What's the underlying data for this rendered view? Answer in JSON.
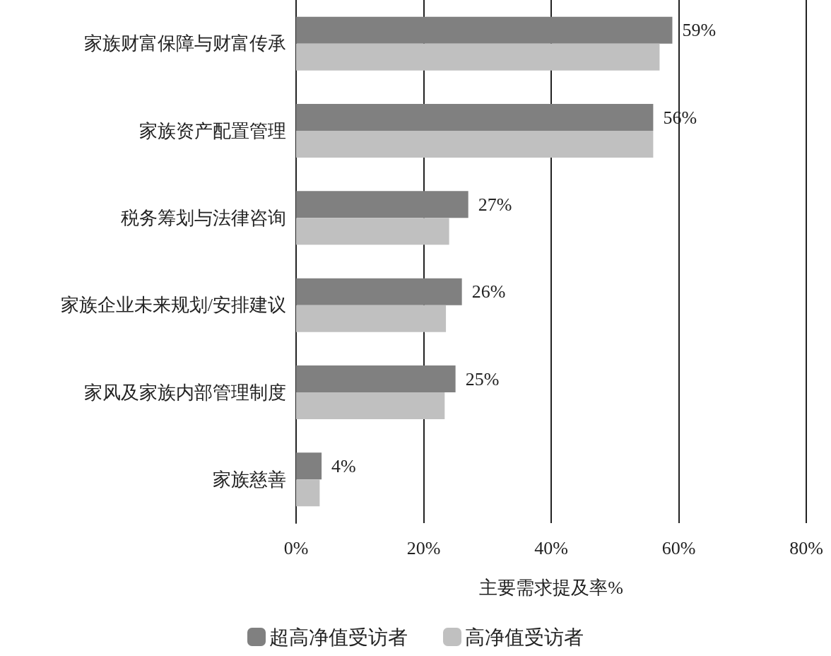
{
  "chart_data": {
    "type": "bar",
    "orientation": "horizontal",
    "xlabel": "主要需求提及率%",
    "categories": [
      "家族财富保障与财富传承",
      "家族资产配置管理",
      "税务筹划与法律咨询",
      "家族企业未来规划/安排建议",
      "家风及家族内部管理制度",
      "家族慈善"
    ],
    "series": [
      {
        "name": "超高净值受访者",
        "color": "#808080",
        "values": [
          59,
          56,
          27,
          26,
          25,
          4
        ],
        "value_labels": [
          "59%",
          "56%",
          "27%",
          "26%",
          "25%",
          "4%"
        ]
      },
      {
        "name": "高净值受访者",
        "color": "#c0c0c0",
        "values": [
          57,
          56,
          24,
          23.5,
          23.3,
          3.7
        ]
      }
    ],
    "xlim": [
      0,
      80
    ],
    "xticks": [
      {
        "value": 0,
        "label": "0%"
      },
      {
        "value": 20,
        "label": "20%"
      },
      {
        "value": 40,
        "label": "40%"
      },
      {
        "value": 60,
        "label": "60%"
      },
      {
        "value": 80,
        "label": "80%"
      }
    ],
    "grid": "x",
    "legend": "bottom"
  }
}
